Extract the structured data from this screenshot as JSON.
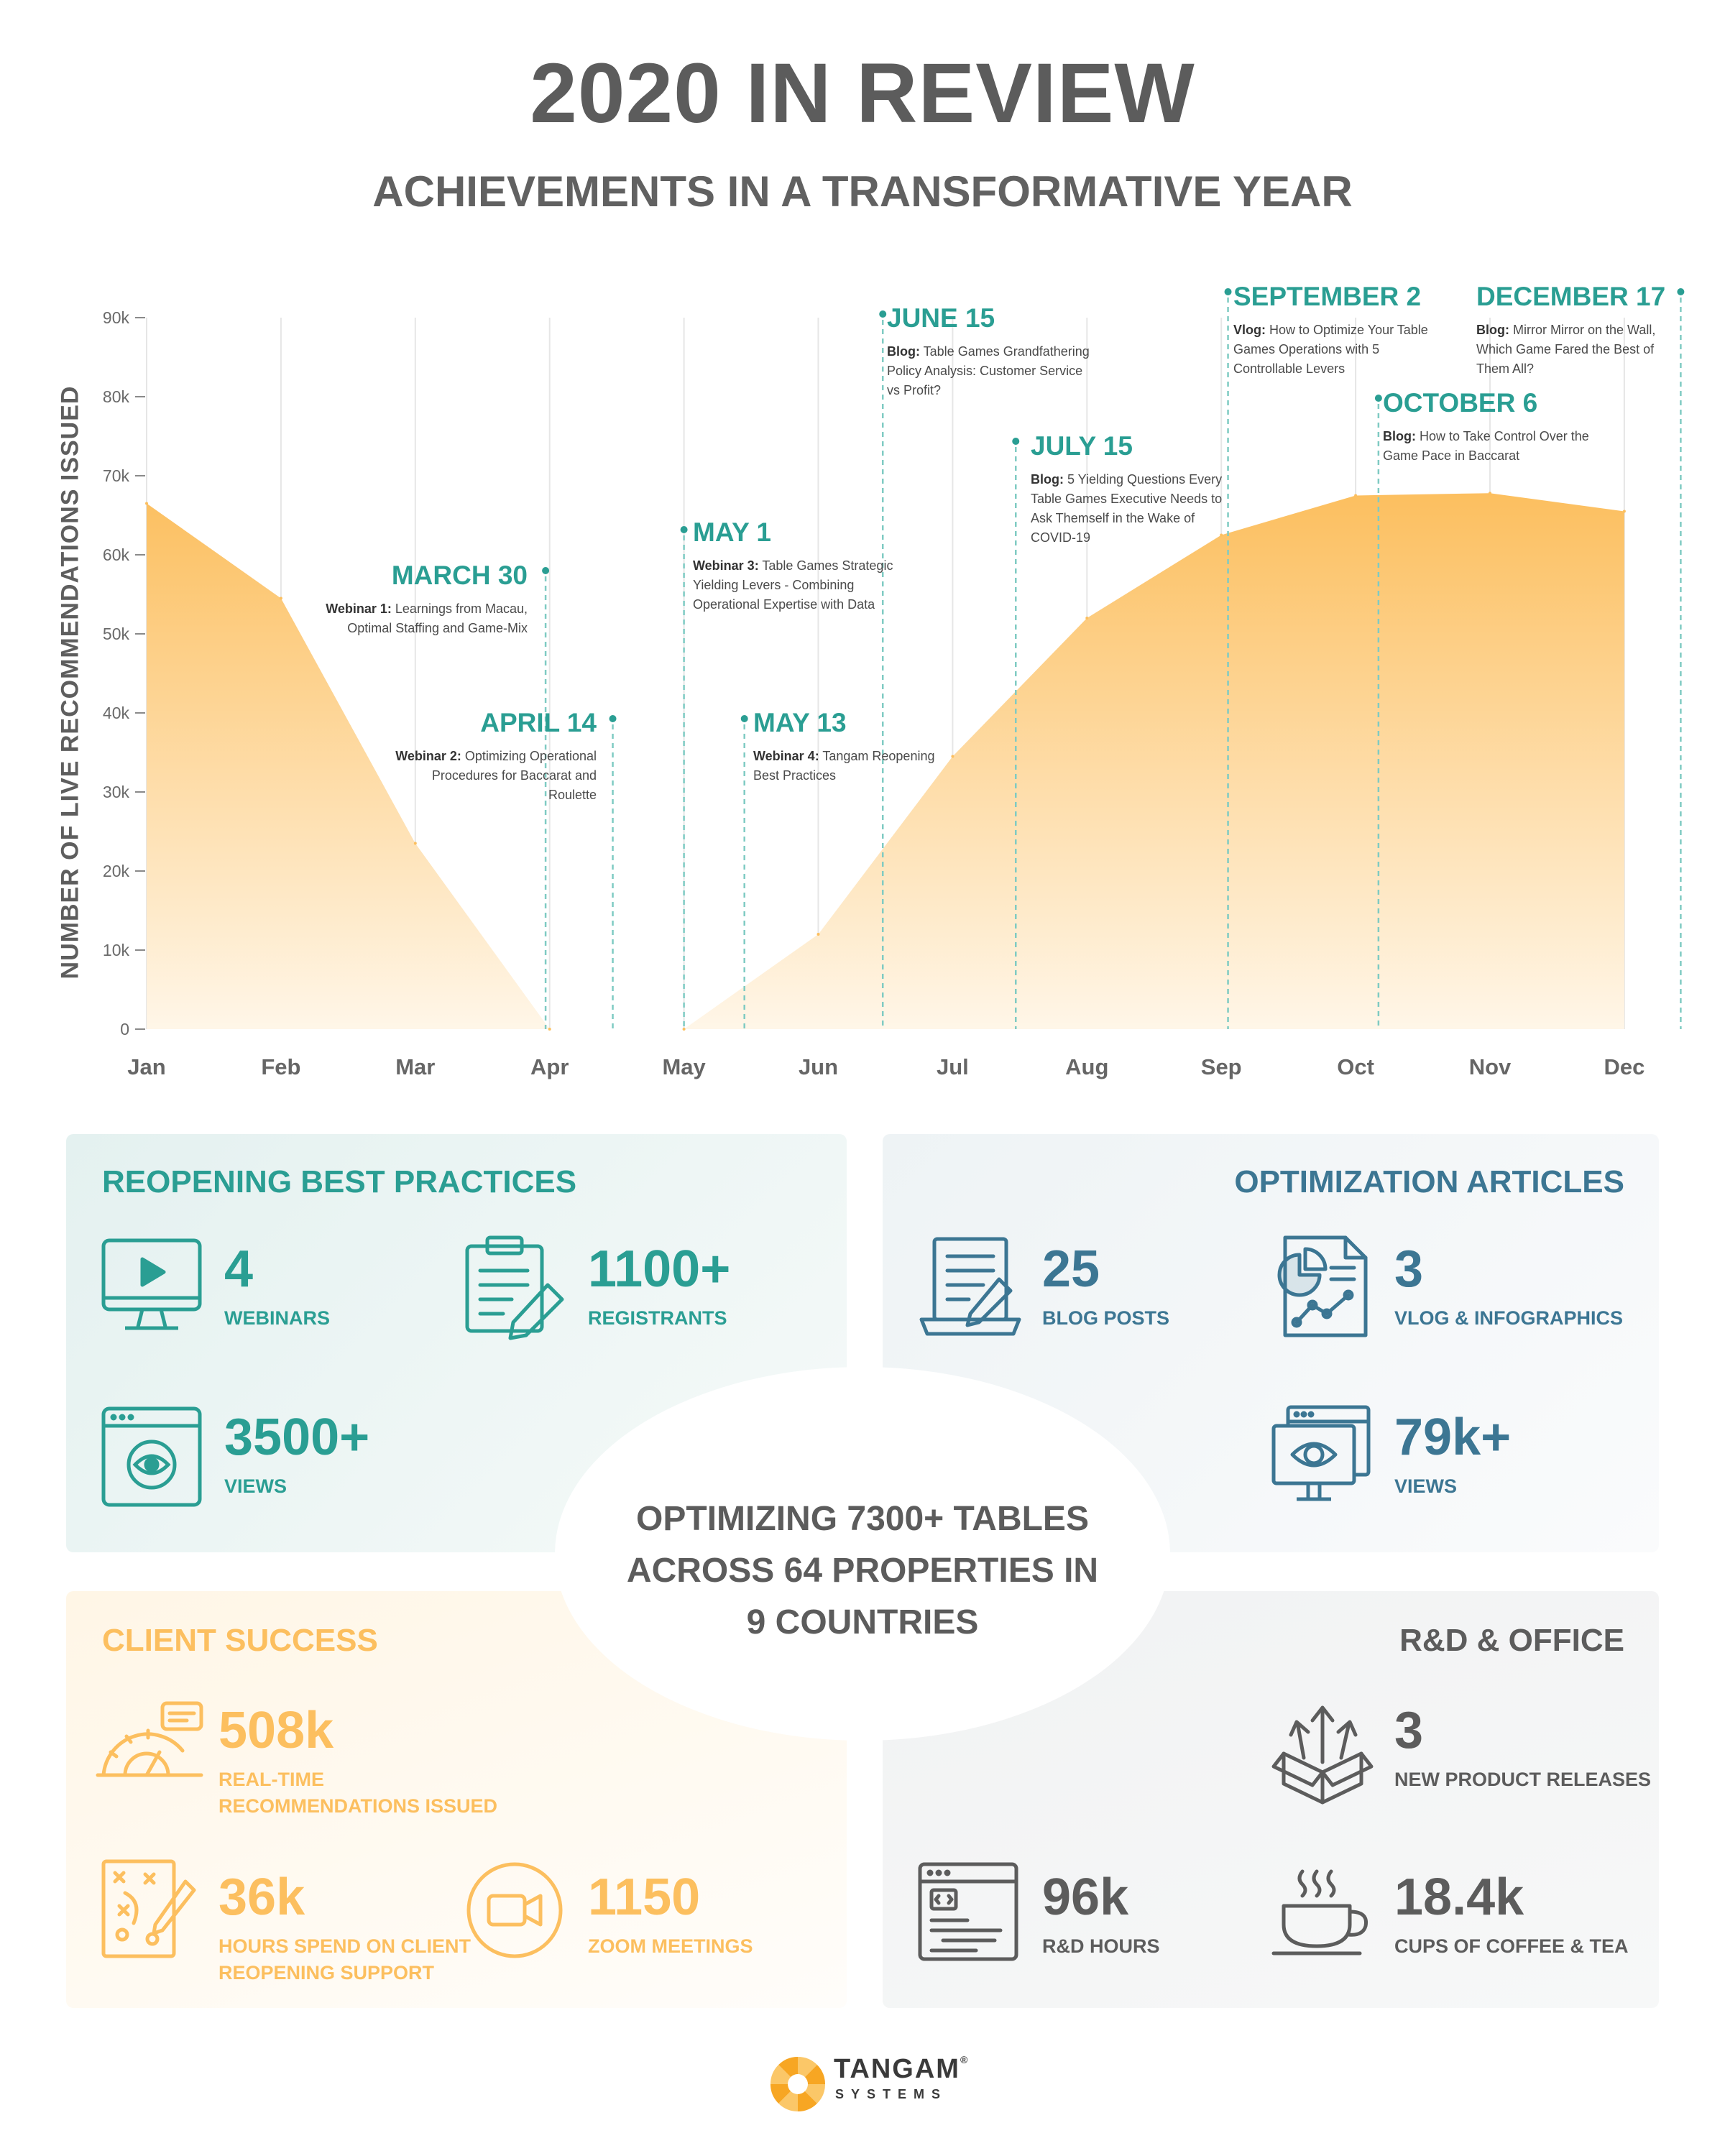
{
  "header": {
    "title": "2020 IN REVIEW",
    "subtitle": "ACHIEVEMENTS IN A TRANSFORMATIVE YEAR"
  },
  "chart_data": {
    "type": "area",
    "ylabel": "NUMBER OF LIVE RECOMMENDATIONS ISSUED",
    "categories": [
      "Jan",
      "Feb",
      "Mar",
      "Apr",
      "May",
      "Jun",
      "Jul",
      "Aug",
      "Sep",
      "Oct",
      "Nov",
      "Dec"
    ],
    "values": [
      66500,
      54500,
      23500,
      0,
      0,
      12000,
      34500,
      52000,
      62500,
      67500,
      67800,
      65500
    ],
    "yticks": [
      "0",
      "10k",
      "20k",
      "30k",
      "40k",
      "50k",
      "60k",
      "70k",
      "80k",
      "90k"
    ],
    "ylim": [
      0,
      90000
    ],
    "fill_colors": [
      "#fcbf5f",
      "#fff6e8"
    ],
    "annotations": [
      {
        "date": "MARCH 30",
        "prefix": "Webinar 1:",
        "text": " Learnings from Macau, Optimal Staffing and Game-Mix"
      },
      {
        "date": "APRIL 14",
        "prefix": "Webinar 2:",
        "text": " Optimizing Operational Procedures for Baccarat and Roulette"
      },
      {
        "date": "MAY 1",
        "prefix": "Webinar 3:",
        "text": " Table Games Strategic Yielding Levers - Combining Operational Expertise with Data"
      },
      {
        "date": "MAY 13",
        "prefix": "Webinar 4:",
        "text": " Tangam Reopening Best Practices"
      },
      {
        "date": "JUNE 15",
        "prefix": "Blog:",
        "text": " Table Games Grandfathering Policy Analysis: Customer Service vs Profit?"
      },
      {
        "date": "JULY 15",
        "prefix": "Blog:",
        "text": " 5 Yielding Questions Every Table Games Executive Needs to Ask Themself in the Wake of COVID-19"
      },
      {
        "date": "SEPTEMBER 2",
        "prefix": "Vlog:",
        "text": " How to Optimize Your Table Games Operations with 5 Controllable Levers"
      },
      {
        "date": "OCTOBER 6",
        "prefix": "Blog:",
        "text": " How to Take Control Over the Game Pace in Baccarat"
      },
      {
        "date": "DECEMBER 17",
        "prefix": "Blog:",
        "text": " Mirror Mirror on the Wall, Which Game Fared the Best of Them All?"
      }
    ]
  },
  "reopening": {
    "title": "REOPENING BEST PRACTICES",
    "webinars": {
      "value": "4",
      "label": "WEBINARS",
      "icon": "monitor-play-icon"
    },
    "registrants": {
      "value": "1100+",
      "label": "REGISTRANTS",
      "icon": "clipboard-pen-icon"
    },
    "views": {
      "value": "3500+",
      "label": "VIEWS",
      "icon": "browser-eye-icon"
    }
  },
  "articles": {
    "title": "OPTIMIZATION ARTICLES",
    "blogs": {
      "value": "25",
      "label": "BLOG POSTS",
      "icon": "laptop-document-icon"
    },
    "vlogs": {
      "value": "3",
      "label": "VLOG & INFOGRAPHICS",
      "icon": "report-chart-icon"
    },
    "views": {
      "value": "79k+",
      "label": "VIEWS",
      "icon": "monitor-eye-icon"
    }
  },
  "center": {
    "line1": "OPTIMIZING 7300+ TABLES",
    "line2": "ACROSS 64 PROPERTIES IN",
    "line3": "9 COUNTRIES"
  },
  "client": {
    "title": "CLIENT SUCCESS",
    "recs": {
      "value": "508k",
      "label1": "REAL-TIME",
      "label2": "RECOMMENDATIONS ISSUED",
      "icon": "gauge-chat-icon"
    },
    "hours": {
      "value": "36k",
      "label1": "HOURS SPEND ON CLIENT",
      "label2": "REOPENING SUPPORT",
      "icon": "strategy-board-icon"
    },
    "zoom": {
      "value": "1150",
      "label": "ZOOM MEETINGS",
      "icon": "video-camera-icon"
    }
  },
  "rnd": {
    "title": "R&D & OFFICE",
    "releases": {
      "value": "3",
      "label": "NEW PRODUCT RELEASES",
      "icon": "box-arrows-icon"
    },
    "hours": {
      "value": "96k",
      "label": "R&D HOURS",
      "icon": "code-window-icon"
    },
    "coffee": {
      "value": "18.4k",
      "label": "CUPS OF COFFEE & TEA",
      "icon": "coffee-cup-icon"
    }
  },
  "logo": {
    "name": "TANGAM",
    "sub": "SYSTEMS",
    "mark": "®"
  },
  "colors": {
    "teal": "#2a9e93",
    "blue": "#3c7693",
    "orange": "#fcbf5f",
    "gray": "#5c5c5c"
  }
}
